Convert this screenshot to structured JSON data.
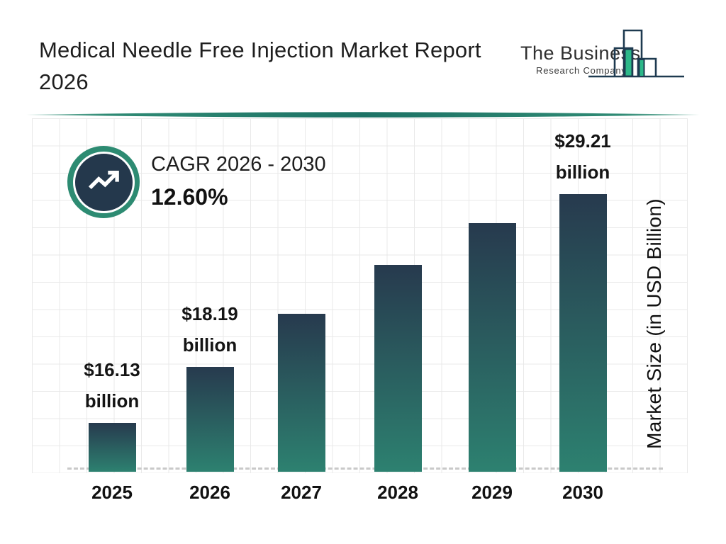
{
  "header": {
    "title_line1": "Medical Needle Free Injection Market Report",
    "title_line2": "2026"
  },
  "logo": {
    "line1": "The Business",
    "line2": "Research Company",
    "icon": "bar-chart-logo-icon",
    "outline_color": "#1e3a50",
    "accent_color": "#2cb889"
  },
  "divider": {
    "color": "#1d7265",
    "edge_color": "#8fc3b5"
  },
  "cagr": {
    "label": "CAGR 2026 - 2030",
    "value": "12.60%",
    "icon": "trending-up-icon",
    "ring_color": "#2d8b72",
    "circle_color": "#24384c"
  },
  "chart_data": {
    "type": "bar",
    "title": "Medical Needle Free Injection Market Report 2026",
    "categories": [
      "2025",
      "2026",
      "2027",
      "2028",
      "2029",
      "2030"
    ],
    "values": [
      16.13,
      18.19,
      20.48,
      23.06,
      25.97,
      29.21
    ],
    "labeled_points": [
      {
        "category": "2025",
        "line1": "$16.13",
        "line2": "billion"
      },
      {
        "category": "2026",
        "line1": "$18.19",
        "line2": "billion"
      },
      {
        "category": "2030",
        "line1": "$29.21",
        "line2": "billion"
      }
    ],
    "unlabeled_values_estimated": true,
    "xlabel": "",
    "ylabel": "Market Size (in USD Billion)",
    "legend": "none",
    "grid": true,
    "baseline": "dashed",
    "bar_gradient_top": "#273a4e",
    "bar_gradient_bottom": "#2d8170"
  }
}
